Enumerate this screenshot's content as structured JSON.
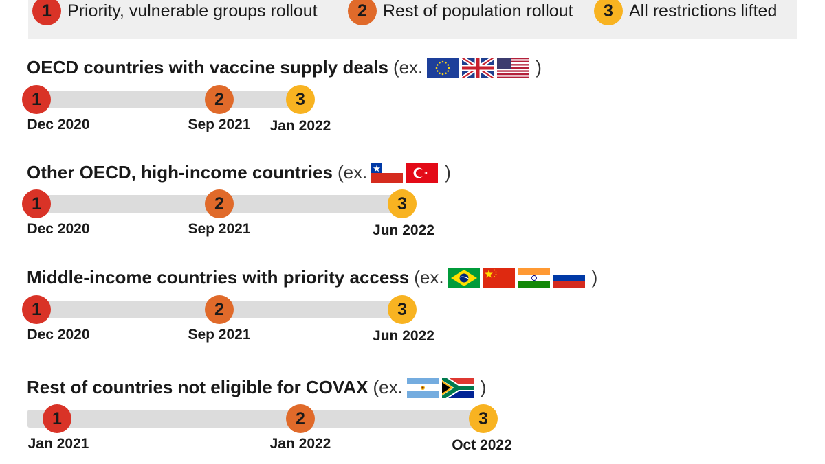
{
  "legend": {
    "items": [
      {
        "num": "1",
        "label": "Priority, vulnerable groups rollout",
        "color": "#d93327"
      },
      {
        "num": "2",
        "label": "Rest of population rollout",
        "color": "#e06a2a"
      },
      {
        "num": "3",
        "label": "All restrictions lifted",
        "color": "#f8b321"
      }
    ]
  },
  "rows": [
    {
      "title": "OECD countries with vaccine supply deals",
      "ex": "(ex.",
      "close": ")",
      "flags": [
        "eu-flag",
        "uk-flag",
        "us-flag"
      ],
      "milestones": [
        {
          "num": "1",
          "date": "Dec 2020"
        },
        {
          "num": "2",
          "date": "Sep 2021"
        },
        {
          "num": "3",
          "date": "Jan 2022"
        }
      ]
    },
    {
      "title": "Other OECD, high-income countries",
      "ex": "(ex.",
      "close": ")",
      "flags": [
        "chile-flag",
        "turkey-flag"
      ],
      "milestones": [
        {
          "num": "1",
          "date": "Dec 2020"
        },
        {
          "num": "2",
          "date": "Sep 2021"
        },
        {
          "num": "3",
          "date": "Jun 2022"
        }
      ]
    },
    {
      "title": "Middle-income countries with priority access",
      "ex": "(ex.",
      "close": ")",
      "flags": [
        "brazil-flag",
        "china-flag",
        "india-flag",
        "russia-flag"
      ],
      "milestones": [
        {
          "num": "1",
          "date": "Dec 2020"
        },
        {
          "num": "2",
          "date": "Sep 2021"
        },
        {
          "num": "3",
          "date": "Jun 2022"
        }
      ]
    },
    {
      "title": "Rest of countries not eligible for COVAX",
      "ex": "(ex.",
      "close": ")",
      "flags": [
        "argentina-flag",
        "south-africa-flag"
      ],
      "milestones": [
        {
          "num": "1",
          "date": "Jan 2021"
        },
        {
          "num": "2",
          "date": "Jan 2022"
        },
        {
          "num": "3",
          "date": "Oct 2022"
        }
      ]
    }
  ]
}
